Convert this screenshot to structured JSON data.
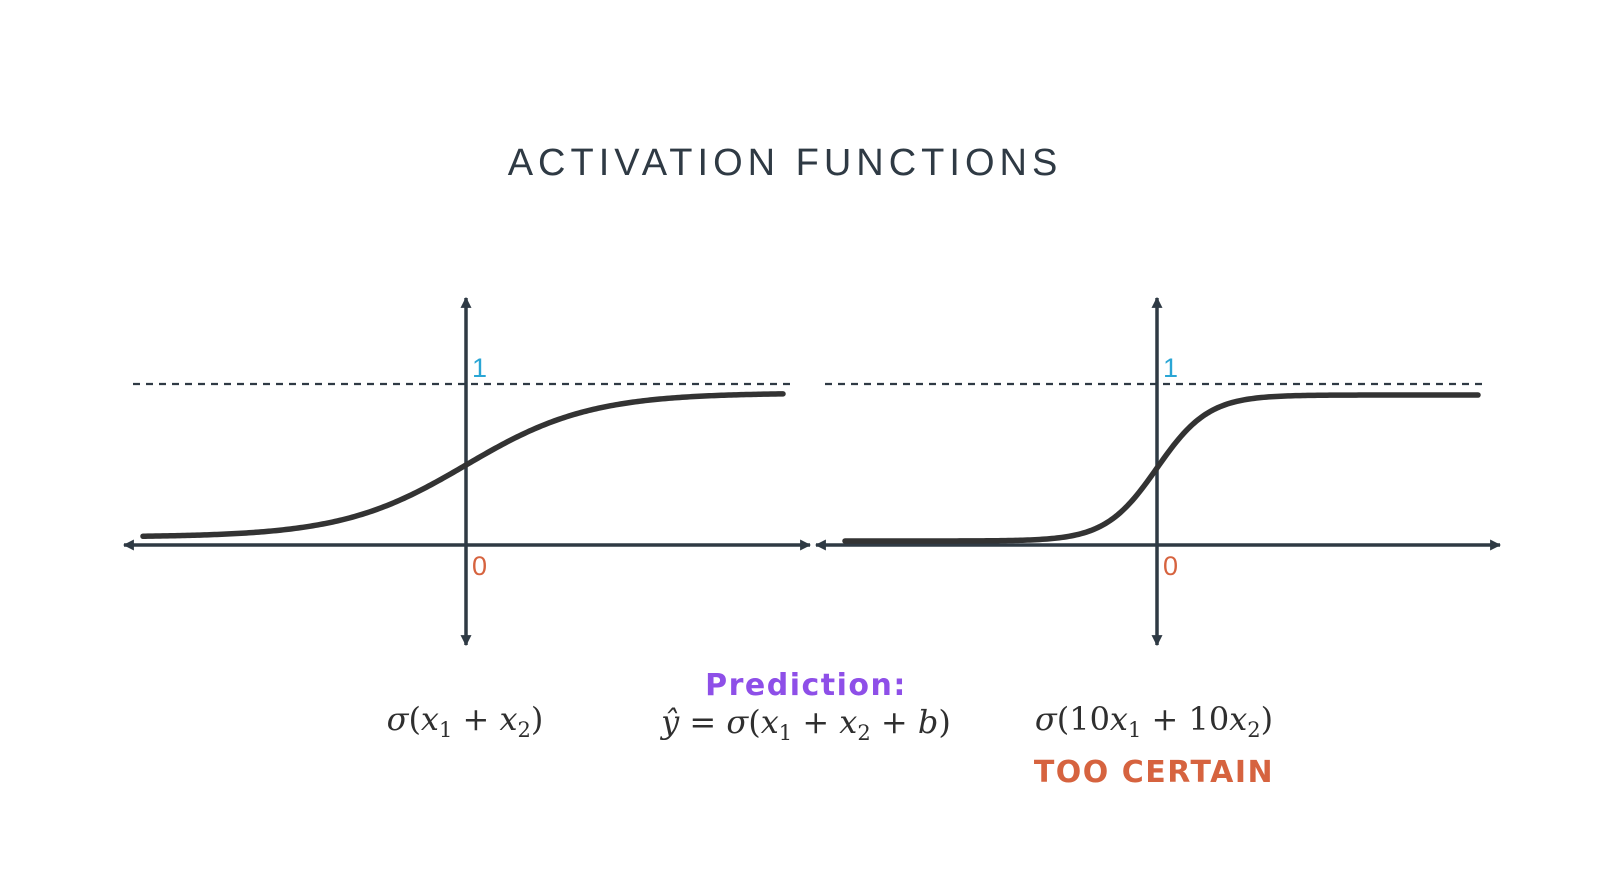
{
  "title": "ACTIVATION FUNCTIONS",
  "colors": {
    "axis": "#2f3a44",
    "curve": "#333333",
    "one_label": "#2aa6d5",
    "zero_label": "#d6633f",
    "prediction": "#8e4fe8",
    "warning": "#d6633f"
  },
  "plots": [
    {
      "name": "left",
      "one_label": "1",
      "zero_label": "0",
      "steepness": 1
    },
    {
      "name": "right",
      "one_label": "1",
      "zero_label": "0",
      "steepness": 10
    }
  ],
  "formulas": {
    "left": {
      "sigma": "σ",
      "open": "(",
      "x1": "x",
      "s1": "1",
      "plus1": " + ",
      "x2": "x",
      "s2": "2",
      "close": ")"
    },
    "prediction_label": "Prediction:",
    "prediction": {
      "lhs": "ŷ",
      "eq": " = ",
      "sigma": "σ",
      "open": "(",
      "x1": "x",
      "s1": "1",
      "plus1": " + ",
      "x2": "x",
      "s2": "2",
      "plus2": " + ",
      "b": "b",
      "close": ")"
    },
    "right": {
      "sigma": "σ",
      "open": "(",
      "c1": "10",
      "x1": "x",
      "s1": "1",
      "plus1": " + ",
      "c2": "10",
      "x2": "x",
      "s2": "2",
      "close": ")"
    },
    "right_note": "TOO CERTAIN"
  }
}
